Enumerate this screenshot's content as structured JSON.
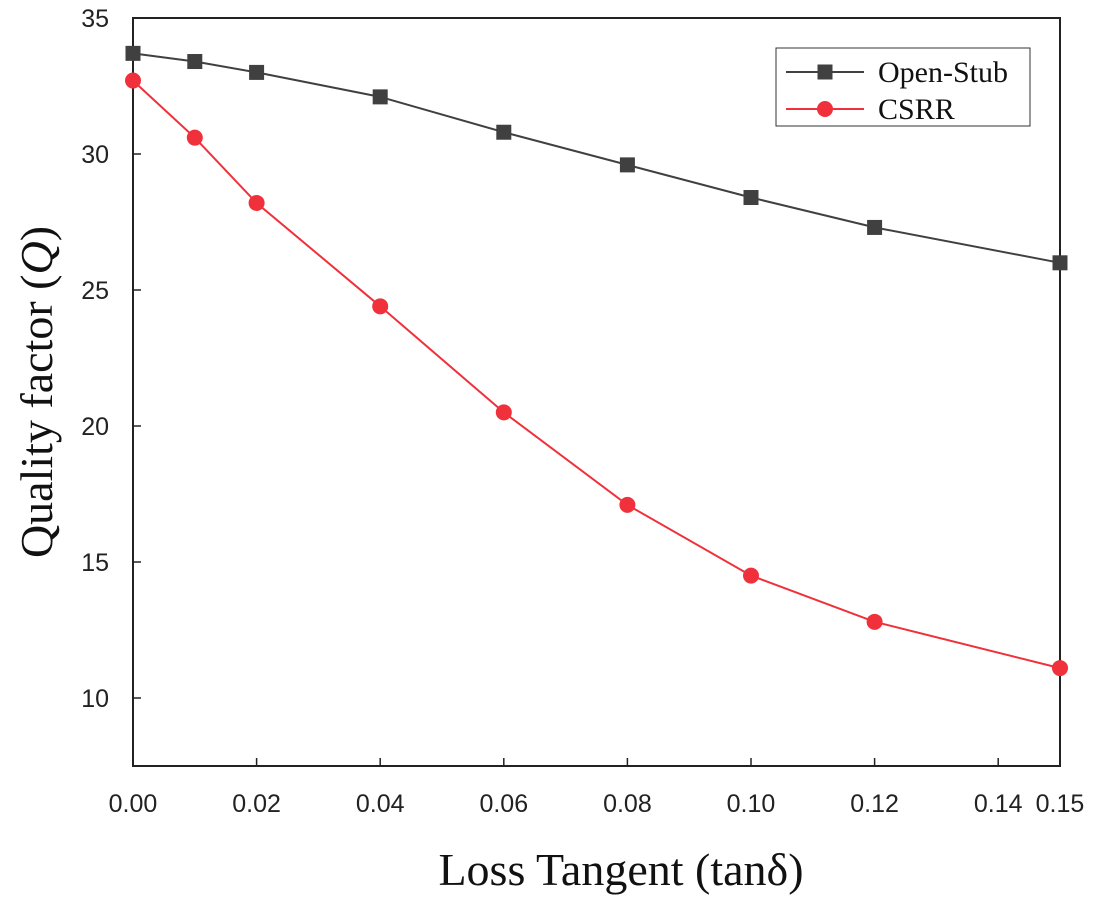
{
  "chart_data": {
    "type": "line",
    "title": "",
    "xlabel": "Loss Tangent (tanδ)",
    "ylabel_prefix": "Quality factor (",
    "ylabel_symbol": "Q",
    "ylabel_suffix": ")",
    "xlim": [
      0,
      0.15
    ],
    "ylim": [
      7.5,
      35
    ],
    "xticks": [
      0,
      0.02,
      0.04,
      0.06,
      0.08,
      0.1,
      0.12,
      0.14,
      0.15
    ],
    "xtick_labels": [
      "0.00",
      "0.02",
      "0.04",
      "0.06",
      "0.08",
      "0.10",
      "0.12",
      "0.14",
      "0.15"
    ],
    "yticks": [
      10,
      15,
      20,
      25,
      30,
      35
    ],
    "ytick_labels": [
      "10",
      "15",
      "20",
      "25",
      "30",
      "35"
    ],
    "grid": false,
    "legend_position": "top-right",
    "x": [
      0,
      0.01,
      0.02,
      0.04,
      0.06,
      0.08,
      0.1,
      0.12,
      0.15
    ],
    "series": [
      {
        "name": "Open-Stub",
        "color": "#404040",
        "marker": "square",
        "values": [
          33.7,
          33.4,
          33.0,
          32.1,
          30.8,
          29.6,
          28.4,
          27.3,
          26.0
        ]
      },
      {
        "name": "CSRR",
        "color": "#f0303a",
        "marker": "circle",
        "values": [
          32.7,
          30.6,
          28.2,
          24.4,
          20.5,
          17.1,
          14.5,
          12.8,
          11.1
        ]
      }
    ]
  }
}
